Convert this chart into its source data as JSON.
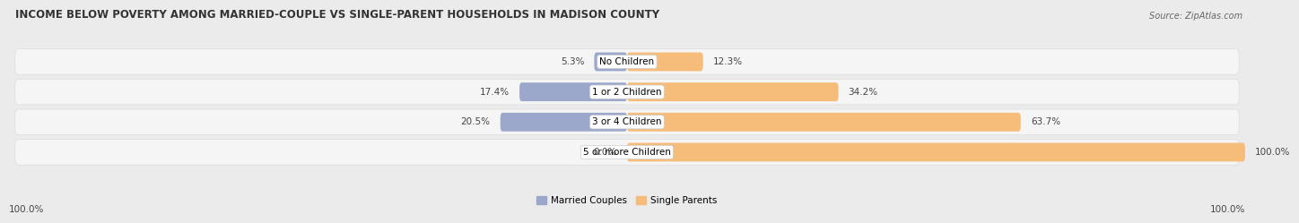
{
  "title": "INCOME BELOW POVERTY AMONG MARRIED-COUPLE VS SINGLE-PARENT HOUSEHOLDS IN MADISON COUNTY",
  "source": "Source: ZipAtlas.com",
  "categories": [
    "No Children",
    "1 or 2 Children",
    "3 or 4 Children",
    "5 or more Children"
  ],
  "married_values": [
    5.3,
    17.4,
    20.5,
    0.0
  ],
  "single_values": [
    12.3,
    34.2,
    63.7,
    100.0
  ],
  "married_color": "#9BA8CC",
  "single_color": "#F5BC7A",
  "max_value": 100.0,
  "bg_color": "#EBEBEB",
  "row_bg_color": "#F5F5F5",
  "row_border_color": "#DDDDDD",
  "title_fontsize": 8.5,
  "label_fontsize": 7.5,
  "source_fontsize": 7,
  "legend_label_married": "Married Couples",
  "legend_label_single": "Single Parents",
  "left_axis_label": "100.0%",
  "right_axis_label": "100.0%"
}
